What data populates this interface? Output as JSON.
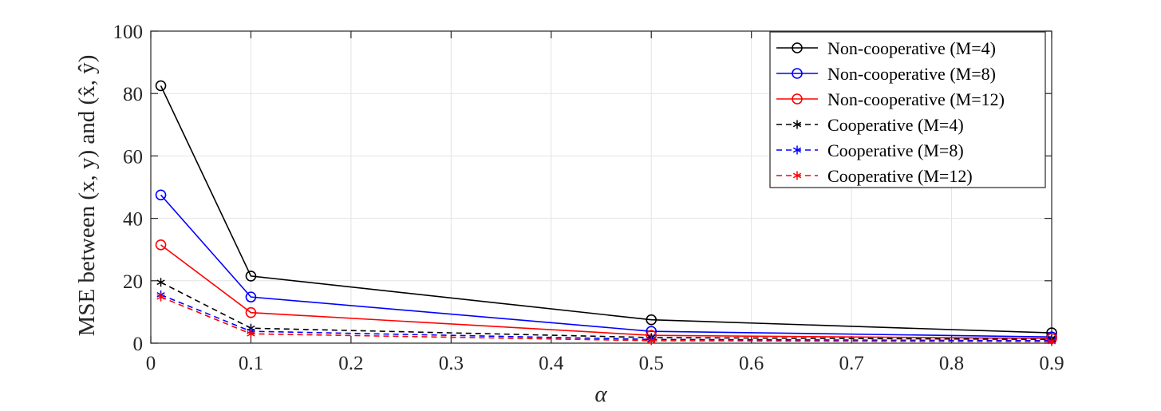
{
  "chart_data": {
    "type": "line",
    "xlabel": "α",
    "ylabel": "MSE between (x, y) and (x̂, ŷ)",
    "xlim": [
      0,
      0.9
    ],
    "ylim": [
      0,
      100
    ],
    "xticks": [
      "0",
      "0.1",
      "0.2",
      "0.3",
      "0.4",
      "0.5",
      "0.6",
      "0.7",
      "0.8",
      "0.9"
    ],
    "yticks": [
      "0",
      "20",
      "40",
      "60",
      "80",
      "100"
    ],
    "grid": true,
    "legend_position": "top-right",
    "x": [
      0.01,
      0.1,
      0.5,
      0.9
    ],
    "series": [
      {
        "name": "Non-cooperative (M=4)",
        "values": [
          82.5,
          21.5,
          7.5,
          3.3
        ],
        "color": "#000000",
        "style": "solid",
        "marker": "circle"
      },
      {
        "name": "Non-cooperative (M=8)",
        "values": [
          47.5,
          14.8,
          3.8,
          2.0
        ],
        "color": "#0000ff",
        "style": "solid",
        "marker": "circle"
      },
      {
        "name": "Non-cooperative (M=12)",
        "values": [
          31.5,
          9.8,
          2.5,
          1.5
        ],
        "color": "#ff0000",
        "style": "solid",
        "marker": "circle"
      },
      {
        "name": "Cooperative (M=4)",
        "values": [
          19.5,
          4.8,
          1.8,
          1.2
        ],
        "color": "#000000",
        "style": "dashed",
        "marker": "asterisk"
      },
      {
        "name": "Cooperative (M=8)",
        "values": [
          15.5,
          3.8,
          1.2,
          0.8
        ],
        "color": "#0000ff",
        "style": "dashed",
        "marker": "asterisk"
      },
      {
        "name": "Cooperative (M=12)",
        "values": [
          14.8,
          3.0,
          0.8,
          0.5
        ],
        "color": "#ff0000",
        "style": "dashed",
        "marker": "asterisk"
      }
    ]
  }
}
